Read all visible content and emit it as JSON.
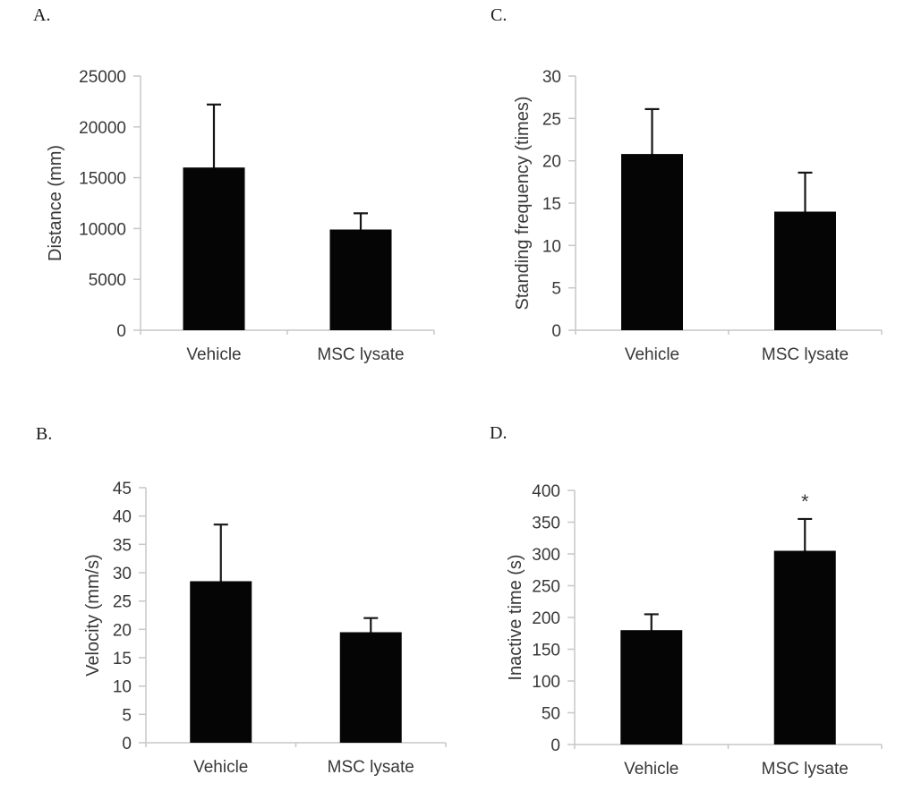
{
  "figure": {
    "background": "#ffffff",
    "description_categories": [
      "Vehicle",
      "MSC lysate"
    ]
  },
  "style": {
    "bar_color": "#050505",
    "error_bar_color": "#161616",
    "axis_color": "#c7c7c7",
    "text_color": "#383838",
    "panel_label_color": "#1a1a1a"
  },
  "chart_data": [
    {
      "type": "bar",
      "panel_label": "A.",
      "ylabel": "Distance (mm)",
      "xlabel": "",
      "categories": [
        "Vehicle",
        "MSC lysate"
      ],
      "values": [
        16000,
        9900
      ],
      "errors_upper": [
        6200,
        1600
      ],
      "ylim": [
        0,
        25000
      ],
      "ytick_step": 5000,
      "yticks": [
        0,
        5000,
        10000,
        15000,
        20000,
        25000
      ],
      "significance": [
        "",
        ""
      ],
      "grid": false,
      "legend": false
    },
    {
      "type": "bar",
      "panel_label": "B.",
      "ylabel": "Velocity (mm/s)",
      "xlabel": "",
      "categories": [
        "Vehicle",
        "MSC lysate"
      ],
      "values": [
        28.5,
        19.5
      ],
      "errors_upper": [
        10,
        2.5
      ],
      "ylim": [
        0,
        45
      ],
      "ytick_step": 5,
      "yticks": [
        0,
        5,
        10,
        15,
        20,
        25,
        30,
        35,
        40,
        45
      ],
      "significance": [
        "",
        ""
      ],
      "grid": false,
      "legend": false
    },
    {
      "type": "bar",
      "panel_label": "C.",
      "ylabel": "Standing frequency (times)",
      "xlabel": "",
      "categories": [
        "Vehicle",
        "MSC lysate"
      ],
      "values": [
        20.8,
        14
      ],
      "errors_upper": [
        5.3,
        4.6
      ],
      "ylim": [
        0,
        30
      ],
      "ytick_step": 5,
      "yticks": [
        0,
        5,
        10,
        15,
        20,
        25,
        30
      ],
      "significance": [
        "",
        ""
      ],
      "grid": false,
      "legend": false
    },
    {
      "type": "bar",
      "panel_label": "D.",
      "ylabel": "Inactive time (s)",
      "xlabel": "",
      "categories": [
        "Vehicle",
        "MSC lysate"
      ],
      "values": [
        180,
        305
      ],
      "errors_upper": [
        25,
        50
      ],
      "ylim": [
        0,
        400
      ],
      "ytick_step": 50,
      "yticks": [
        0,
        50,
        100,
        150,
        200,
        250,
        300,
        350,
        400
      ],
      "significance": [
        "",
        "*"
      ],
      "grid": false,
      "legend": false
    }
  ]
}
